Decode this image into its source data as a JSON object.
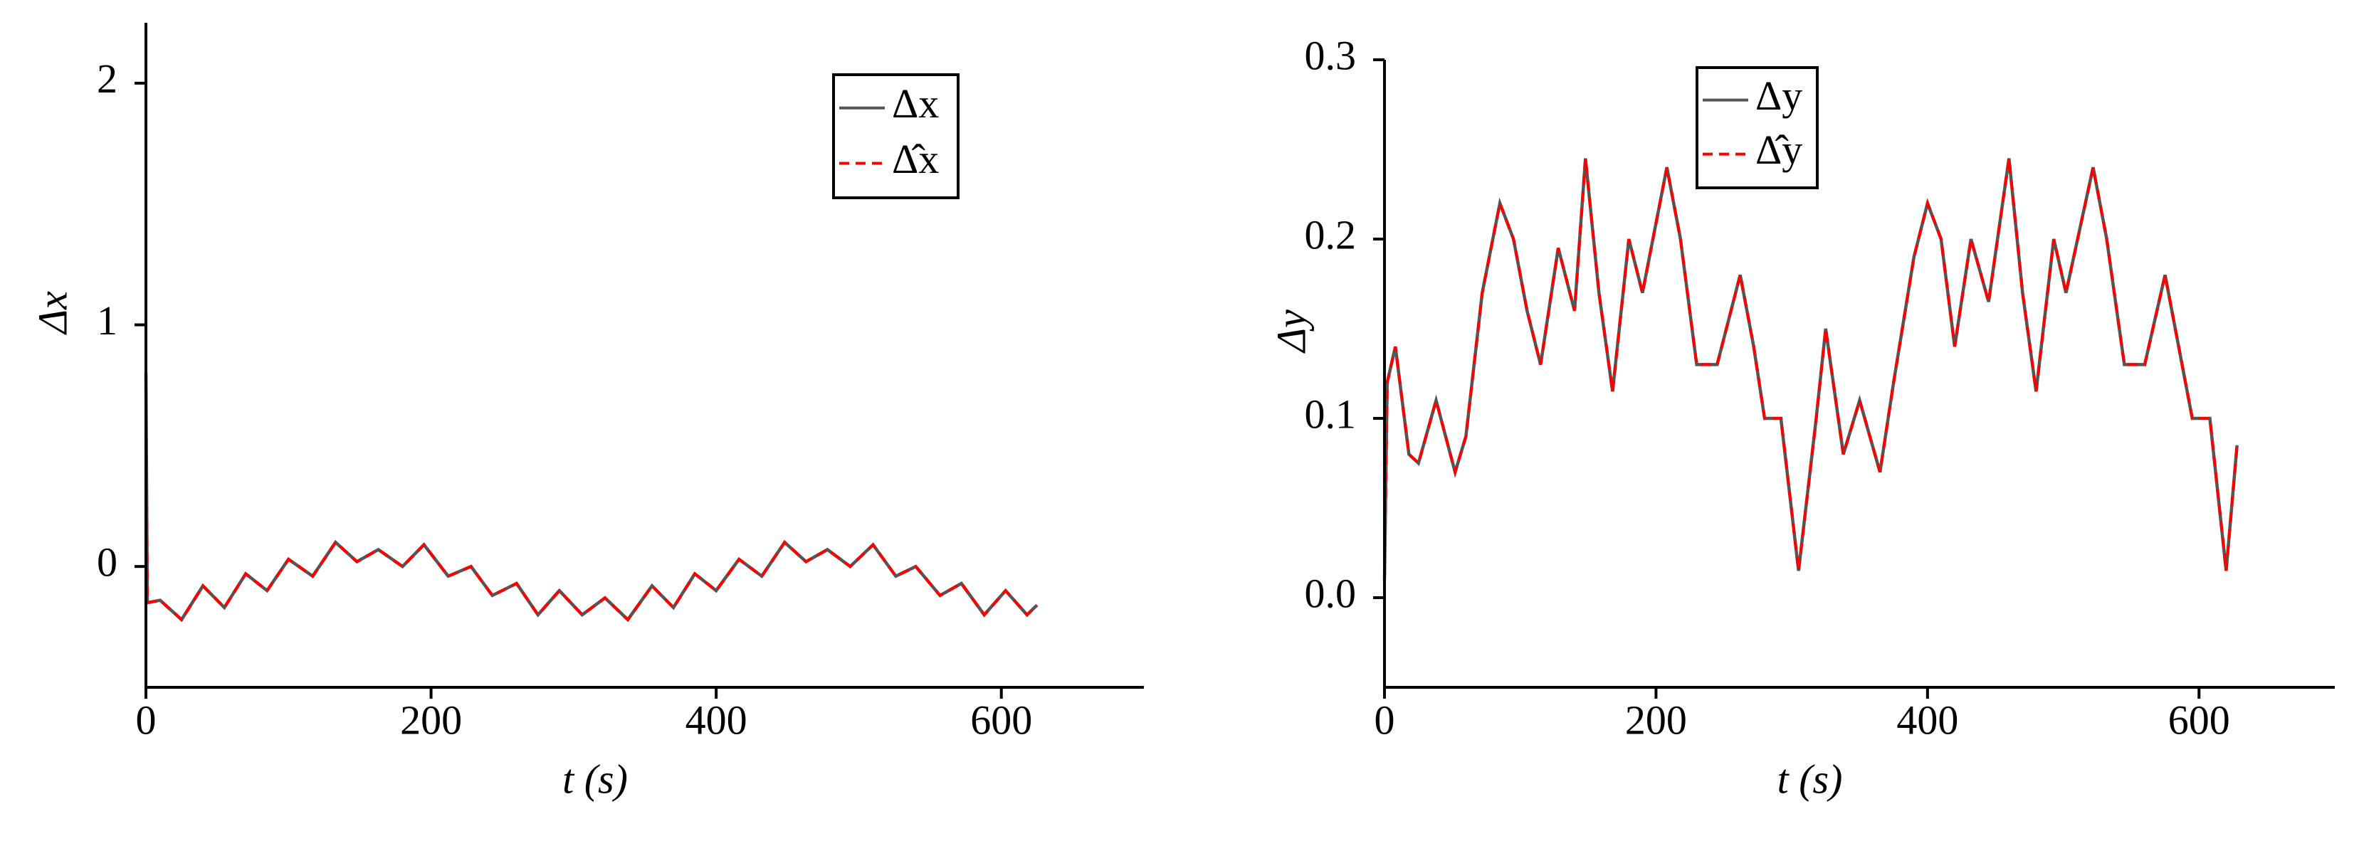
{
  "chart_data": [
    {
      "type": "line",
      "x_label": "t (s)",
      "y_label": "Δx",
      "x": [
        0,
        1,
        10,
        25,
        40,
        55,
        70,
        85,
        100,
        117,
        133,
        148,
        163,
        180,
        195,
        212,
        228,
        243,
        260,
        275,
        290,
        306,
        322,
        338,
        355,
        370,
        385,
        400,
        416,
        432,
        448,
        463,
        478,
        494,
        510,
        526,
        540,
        557,
        572,
        588,
        603,
        618,
        625
      ],
      "series": [
        {
          "name": "Δx",
          "color": "#555555",
          "line_style": "solid",
          "values": [
            0.8,
            -0.15,
            -0.14,
            -0.22,
            -0.08,
            -0.17,
            -0.03,
            -0.1,
            0.03,
            -0.04,
            0.1,
            0.02,
            0.07,
            0.0,
            0.09,
            -0.04,
            0.0,
            -0.12,
            -0.07,
            -0.2,
            -0.1,
            -0.2,
            -0.13,
            -0.22,
            -0.08,
            -0.17,
            -0.03,
            -0.1,
            0.03,
            -0.04,
            0.1,
            0.02,
            0.07,
            0.0,
            0.09,
            -0.04,
            0.0,
            -0.12,
            -0.07,
            -0.2,
            -0.1,
            -0.2,
            -0.16
          ]
        },
        {
          "name": "Δ̂x",
          "color": "#ff0000",
          "line_style": "dashed",
          "values": [
            0.8,
            -0.15,
            -0.14,
            -0.22,
            -0.08,
            -0.17,
            -0.03,
            -0.1,
            0.03,
            -0.04,
            0.1,
            0.02,
            0.07,
            0.0,
            0.09,
            -0.04,
            0.0,
            -0.12,
            -0.07,
            -0.2,
            -0.1,
            -0.2,
            -0.13,
            -0.22,
            -0.08,
            -0.17,
            -0.03,
            -0.1,
            0.03,
            -0.04,
            0.1,
            0.02,
            0.07,
            0.0,
            0.09,
            -0.04,
            0.0,
            -0.12,
            -0.07,
            -0.2,
            -0.1,
            -0.2,
            -0.16
          ]
        }
      ],
      "xlim": [
        0,
        700
      ],
      "xticks": [
        0,
        200,
        400,
        600
      ],
      "ylim": [
        -0.5,
        2.25
      ],
      "yticks": [
        0,
        1,
        2
      ]
    },
    {
      "type": "line",
      "x_label": "t (s)",
      "y_label": "Δy",
      "x": [
        0,
        2,
        8,
        18,
        25,
        38,
        52,
        60,
        72,
        85,
        95,
        105,
        115,
        128,
        140,
        148,
        158,
        168,
        180,
        190,
        208,
        218,
        230,
        245,
        262,
        272,
        280,
        292,
        305,
        318,
        325,
        338,
        350,
        365,
        375,
        390,
        400,
        410,
        420,
        432,
        445,
        460,
        470,
        480,
        493,
        502,
        522,
        532,
        545,
        560,
        575,
        585,
        595,
        608,
        620,
        628
      ],
      "series": [
        {
          "name": "Δy",
          "color": "#555555",
          "line_style": "solid",
          "values": [
            0.01,
            0.12,
            0.14,
            0.08,
            0.075,
            0.11,
            0.07,
            0.09,
            0.17,
            0.22,
            0.2,
            0.16,
            0.13,
            0.195,
            0.16,
            0.245,
            0.17,
            0.115,
            0.2,
            0.17,
            0.24,
            0.2,
            0.13,
            0.13,
            0.18,
            0.14,
            0.1,
            0.1,
            0.015,
            0.1,
            0.15,
            0.08,
            0.11,
            0.07,
            0.12,
            0.19,
            0.22,
            0.2,
            0.14,
            0.2,
            0.165,
            0.245,
            0.17,
            0.115,
            0.2,
            0.17,
            0.24,
            0.2,
            0.13,
            0.13,
            0.18,
            0.14,
            0.1,
            0.1,
            0.015,
            0.085
          ]
        },
        {
          "name": "Δ̂y",
          "color": "#ff0000",
          "line_style": "dashed",
          "values": [
            0.01,
            0.12,
            0.14,
            0.08,
            0.075,
            0.11,
            0.07,
            0.09,
            0.17,
            0.22,
            0.2,
            0.16,
            0.13,
            0.195,
            0.16,
            0.245,
            0.17,
            0.115,
            0.2,
            0.17,
            0.24,
            0.2,
            0.13,
            0.13,
            0.18,
            0.14,
            0.1,
            0.1,
            0.015,
            0.1,
            0.15,
            0.08,
            0.11,
            0.07,
            0.12,
            0.19,
            0.22,
            0.2,
            0.14,
            0.2,
            0.165,
            0.245,
            0.17,
            0.115,
            0.2,
            0.17,
            0.24,
            0.2,
            0.13,
            0.13,
            0.18,
            0.14,
            0.1,
            0.1,
            0.015,
            0.085
          ]
        }
      ],
      "xlim": [
        0,
        700
      ],
      "xticks": [
        0,
        200,
        400,
        600
      ],
      "ylim": [
        -0.05,
        0.3
      ],
      "yticks": [
        {
          "value": 0,
          "label": "0.0"
        },
        0.1,
        0.2,
        0.3
      ]
    }
  ]
}
